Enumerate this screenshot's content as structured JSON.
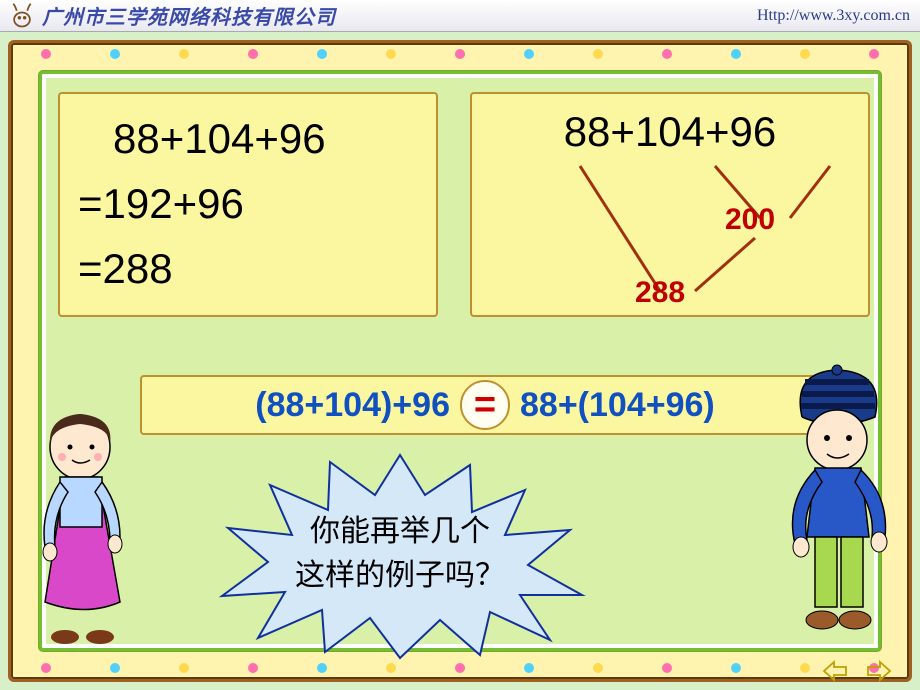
{
  "header": {
    "company": "广州市三学苑网络科技有限公司",
    "url": "Http://www.3xy.com.cn"
  },
  "frame": {
    "outer_border_color": "#a06020",
    "outer_bg": "#fff3b0",
    "inner_border_color": "#70c030",
    "inner_bg": "#d8f0a8",
    "bead_colors": [
      "#ff6fae",
      "#4fd0ff",
      "#ffd94f",
      "#ff6fae",
      "#4fd0ff",
      "#ffd94f",
      "#ff6fae",
      "#4fd0ff",
      "#ffd94f",
      "#ff6fae",
      "#4fd0ff",
      "#ffd94f",
      "#ff6fae"
    ]
  },
  "left_box": {
    "line1": "   88+104+96",
    "line2": "=192+96",
    "line3": "=288",
    "bg": "#fbf7a0",
    "border": "#c09030",
    "font_size": 42
  },
  "right_box": {
    "expression": "88+104+96",
    "intermediate": "200",
    "result": "288",
    "line_color": "#a03010",
    "num_color": "#c00000",
    "bg": "#fbf7a0"
  },
  "equation": {
    "lhs": "(88+104)+96",
    "rhs": "88+(104+96)",
    "op": "=",
    "text_color": "#1050c0",
    "op_color": "#d00000",
    "bg": "#fbf7a0"
  },
  "starburst": {
    "line1": "你能再举几个",
    "line2": "这样的例子吗？",
    "fill": "#d4e8f8",
    "stroke": "#1030a0"
  },
  "characters": {
    "left_desc": "woman-in-pink-dress",
    "right_desc": "boy-with-blue-hat"
  },
  "nav": {
    "prev": "prev-slide",
    "next": "next-slide",
    "color": "#c0a000"
  }
}
